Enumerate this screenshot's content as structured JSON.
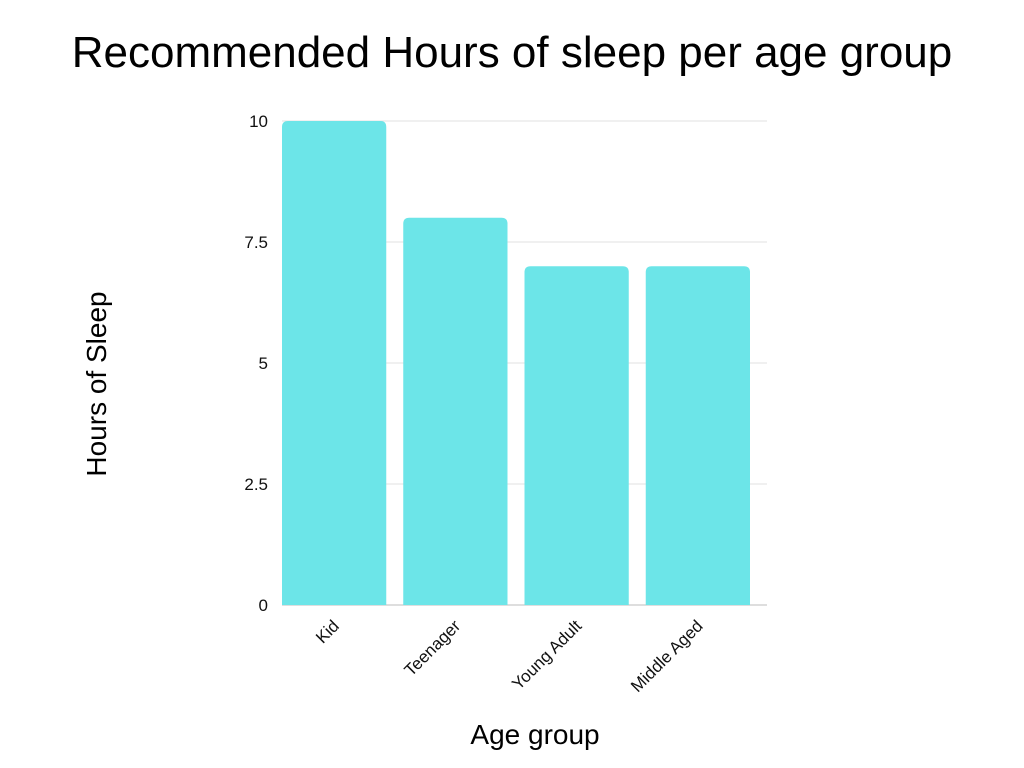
{
  "chart_data": {
    "type": "bar",
    "title": "Recommended Hours of sleep per age group",
    "xlabel": "Age group",
    "ylabel": "Hours of Sleep",
    "categories": [
      "Kid",
      "Teenager",
      "Young Adult",
      "Middle Aged"
    ],
    "values": [
      10,
      8,
      7,
      7
    ],
    "ylim": [
      0,
      10
    ],
    "yticks": [
      0,
      2.5,
      5,
      7.5,
      10
    ],
    "ytick_labels": [
      "0",
      "2.5",
      "5",
      "7.5",
      "10"
    ],
    "grid": true,
    "legend": "none",
    "bar_color": "#6ce5e8"
  }
}
